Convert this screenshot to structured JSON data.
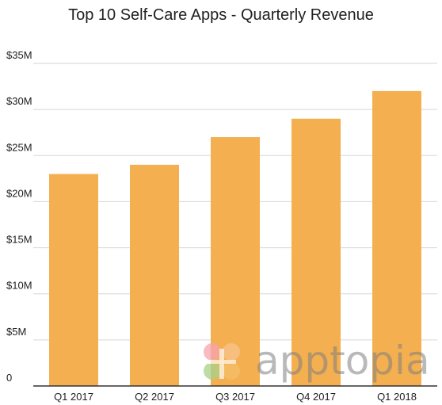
{
  "chart_data": {
    "type": "bar",
    "title": "Top 10 Self-Care Apps - Quarterly Revenue",
    "xlabel": "",
    "ylabel": "",
    "categories": [
      "Q1 2017",
      "Q2 2017",
      "Q3 2017",
      "Q4 2017",
      "Q1 2018"
    ],
    "series": [
      {
        "values": [
          23,
          24,
          27,
          29,
          32
        ],
        "color": "#F4AF50"
      }
    ],
    "ylim": [
      0,
      35
    ],
    "yticks": [
      0,
      5,
      10,
      15,
      20,
      25,
      30,
      35
    ],
    "ytick_labels": [
      "0",
      "$5M",
      "$10M",
      "$15M",
      "$20M",
      "$25M",
      "$30M",
      "$35M"
    ],
    "grid": true,
    "legend": "none"
  },
  "watermark": {
    "text": "apptopia",
    "logo_colors": [
      "#F6A3B0",
      "#F8C48E",
      "#A7D28A",
      "#F4C06A"
    ]
  },
  "colors": {
    "bar": "#F4AF50",
    "grid": "#D6D6D6",
    "axis": "#333333",
    "text": "#212121"
  }
}
